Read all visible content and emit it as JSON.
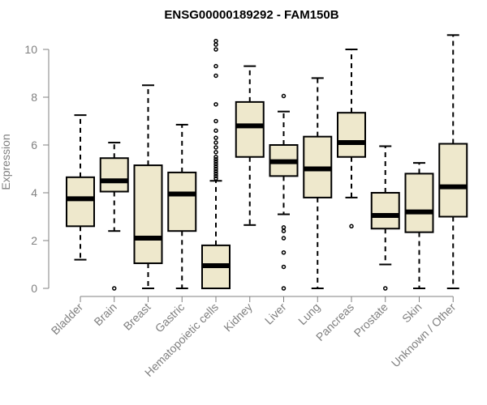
{
  "chart_data": {
    "type": "box",
    "title": "ENSG00000189292 - FAM150B",
    "xlabel": "",
    "ylabel": "Expression",
    "ylim": [
      0,
      10.6
    ],
    "yticks": [
      0,
      2,
      4,
      6,
      8,
      10
    ],
    "grid": false,
    "colors": {
      "box_fill": "#EEE8CC",
      "stroke": "#000000",
      "axis_text": "#808080"
    },
    "categories": [
      "Bladder",
      "Brain",
      "Breast",
      "Gastric",
      "Hematopoietic cells",
      "Kidney",
      "Liver",
      "Lung",
      "Pancreas",
      "Prostate",
      "Skin",
      "Unknown / Other"
    ],
    "boxes": [
      {
        "min": 1.2,
        "q1": 2.6,
        "median": 3.75,
        "q3": 4.65,
        "max": 7.25,
        "outliers": []
      },
      {
        "min": 2.4,
        "q1": 4.05,
        "median": 4.5,
        "q3": 5.45,
        "max": 6.1,
        "outliers": [
          0
        ]
      },
      {
        "min": 0,
        "q1": 1.05,
        "median": 2.1,
        "q3": 5.15,
        "max": 8.5,
        "outliers": []
      },
      {
        "min": 0,
        "q1": 2.4,
        "median": 3.95,
        "q3": 4.85,
        "max": 6.85,
        "outliers": []
      },
      {
        "min": 0,
        "q1": 0,
        "median": 0.95,
        "q3": 1.8,
        "max": 4.5,
        "outliers": [
          4.6,
          4.7,
          4.8,
          4.9,
          5.0,
          5.1,
          5.2,
          5.3,
          5.4,
          5.5,
          5.7,
          5.9,
          6.1,
          6.3,
          6.6,
          7.0,
          7.7,
          8.9,
          9.3,
          10.0,
          10.2,
          10.35
        ]
      },
      {
        "min": 2.65,
        "q1": 5.5,
        "median": 6.8,
        "q3": 7.8,
        "max": 9.3,
        "outliers": []
      },
      {
        "min": 3.1,
        "q1": 4.7,
        "median": 5.3,
        "q3": 6.0,
        "max": 7.4,
        "outliers": [
          0,
          0.9,
          1.5,
          2.1,
          2.4,
          2.55,
          8.05
        ]
      },
      {
        "min": 0,
        "q1": 3.8,
        "median": 5.0,
        "q3": 6.35,
        "max": 8.8,
        "outliers": []
      },
      {
        "min": 3.8,
        "q1": 5.5,
        "median": 6.1,
        "q3": 7.35,
        "max": 10.0,
        "outliers": [
          2.6
        ]
      },
      {
        "min": 1.0,
        "q1": 2.5,
        "median": 3.05,
        "q3": 4.0,
        "max": 5.95,
        "outliers": [
          0
        ]
      },
      {
        "min": 0,
        "q1": 2.35,
        "median": 3.2,
        "q3": 4.8,
        "max": 5.25,
        "outliers": []
      },
      {
        "min": 0,
        "q1": 3.0,
        "median": 4.25,
        "q3": 6.05,
        "max": 10.6,
        "outliers": []
      }
    ]
  }
}
